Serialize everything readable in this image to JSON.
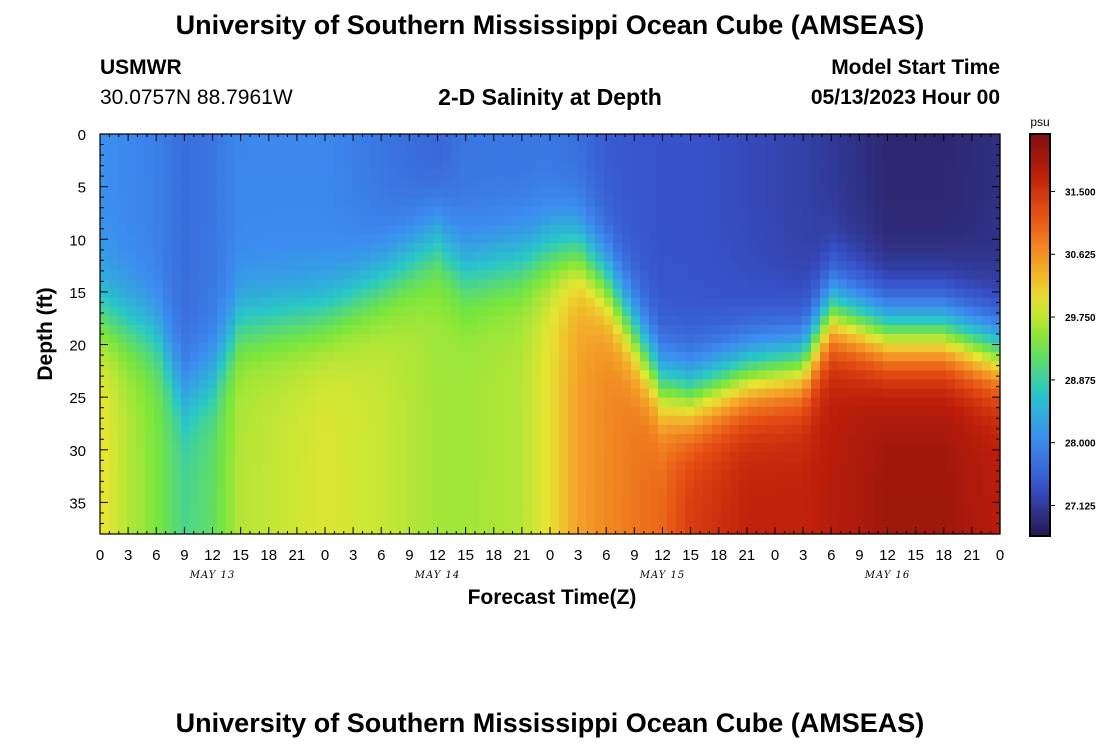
{
  "header": {
    "title": "University of Southern Mississippi Ocean Cube (AMSEAS)",
    "station": "USMWR",
    "coordinates": "30.0757N  88.7961W",
    "subtitle": "2-D Salinity at Depth",
    "model_start_label": "Model Start Time",
    "model_start_value": "05/13/2023 Hour 00"
  },
  "footer": {
    "title": "University of Southern Mississippi Ocean Cube (AMSEAS)"
  },
  "chart_data": {
    "type": "heatmap",
    "title": "2-D Salinity at Depth",
    "xlabel": "Forecast Time(Z)",
    "ylabel": "Depth (ft)",
    "x_ticks": [
      "0",
      "3",
      "6",
      "9",
      "12",
      "15",
      "18",
      "21",
      "0",
      "3",
      "6",
      "9",
      "12",
      "15",
      "18",
      "21",
      "0",
      "3",
      "6",
      "9",
      "12",
      "15",
      "18",
      "21",
      "0",
      "3",
      "6",
      "9",
      "12",
      "15",
      "18",
      "21",
      "0"
    ],
    "x_range_hours": [
      0,
      96
    ],
    "day_labels": [
      {
        "label": "MAY 13",
        "hour": 12
      },
      {
        "label": "MAY 14",
        "hour": 36
      },
      {
        "label": "MAY 15",
        "hour": 60
      },
      {
        "label": "MAY 16",
        "hour": 84
      }
    ],
    "y_ticks": [
      0,
      5,
      10,
      15,
      20,
      25,
      30,
      35
    ],
    "y_range_ft": [
      0,
      38
    ],
    "colorbar": {
      "unit": "psu",
      "min": 26.7,
      "max": 32.3,
      "ticks": [
        31.5,
        30.625,
        29.75,
        28.875,
        28.0,
        27.125
      ],
      "tick_labels": [
        "31.500",
        "30.625",
        "29.750",
        "28.875",
        "28.000",
        "27.125"
      ]
    },
    "salinity_profiles": [
      {
        "hour": 0,
        "surface": 28.1,
        "halocline_ft": 17,
        "bottom": 30.0
      },
      {
        "hour": 6,
        "surface": 27.9,
        "halocline_ft": 19,
        "bottom": 29.4
      },
      {
        "hour": 9,
        "surface": 27.7,
        "halocline_ft": 25,
        "bottom": 29.0
      },
      {
        "hour": 12,
        "surface": 27.8,
        "halocline_ft": 23,
        "bottom": 29.2
      },
      {
        "hour": 15,
        "surface": 28.0,
        "halocline_ft": 18,
        "bottom": 29.7
      },
      {
        "hour": 24,
        "surface": 28.0,
        "halocline_ft": 17,
        "bottom": 29.9
      },
      {
        "hour": 30,
        "surface": 27.8,
        "halocline_ft": 14,
        "bottom": 29.8
      },
      {
        "hour": 36,
        "surface": 27.6,
        "halocline_ft": 10,
        "bottom": 29.6
      },
      {
        "hour": 39,
        "surface": 27.8,
        "halocline_ft": 13,
        "bottom": 29.6
      },
      {
        "hour": 45,
        "surface": 27.8,
        "halocline_ft": 12,
        "bottom": 29.7
      },
      {
        "hour": 48,
        "surface": 27.8,
        "halocline_ft": 11,
        "bottom": 30.0
      },
      {
        "hour": 51,
        "surface": 27.7,
        "halocline_ft": 11,
        "bottom": 30.5
      },
      {
        "hour": 54,
        "surface": 27.5,
        "halocline_ft": 14,
        "bottom": 30.7
      },
      {
        "hour": 60,
        "surface": 27.4,
        "halocline_ft": 24,
        "bottom": 31.0
      },
      {
        "hour": 63,
        "surface": 27.4,
        "halocline_ft": 25,
        "bottom": 31.4
      },
      {
        "hour": 69,
        "surface": 27.3,
        "halocline_ft": 23,
        "bottom": 31.7
      },
      {
        "hour": 75,
        "surface": 27.2,
        "halocline_ft": 22,
        "bottom": 31.7
      },
      {
        "hour": 78,
        "surface": 27.1,
        "halocline_ft": 17,
        "bottom": 31.8
      },
      {
        "hour": 84,
        "surface": 26.9,
        "halocline_ft": 19,
        "bottom": 32.0
      },
      {
        "hour": 90,
        "surface": 26.9,
        "halocline_ft": 19,
        "bottom": 32.0
      },
      {
        "hour": 96,
        "surface": 27.0,
        "halocline_ft": 21,
        "bottom": 31.8
      }
    ]
  }
}
